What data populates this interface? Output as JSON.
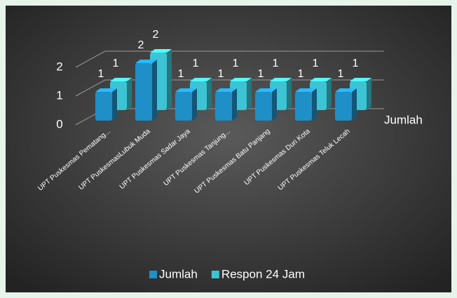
{
  "chart_data": {
    "type": "bar3d",
    "categories": [
      "UPT Puskesmas Pematang...",
      "UPT PuskesmasLubuk Muda",
      "UPT Puskesmas Sadar Jaya",
      "UPT Puskesmas Tanjung...",
      "UPT Puskesmas Batu Panjang",
      "UPT Puskesmas Duri Kota",
      "UPT Puskesmas Teluk Lecah"
    ],
    "series": [
      {
        "name": "Jumlah",
        "color": "#1f8fc8",
        "values": [
          1,
          2,
          1,
          1,
          1,
          1,
          1
        ]
      },
      {
        "name": "Respon 24 Jam",
        "color": "#3cc4d4",
        "values": [
          1,
          2,
          1,
          1,
          1,
          1,
          1
        ]
      }
    ],
    "depth_label": "Jumlah",
    "ylim": [
      0,
      2
    ],
    "yticks": [
      0,
      1,
      2
    ],
    "grid": true,
    "legend": "bottom"
  }
}
